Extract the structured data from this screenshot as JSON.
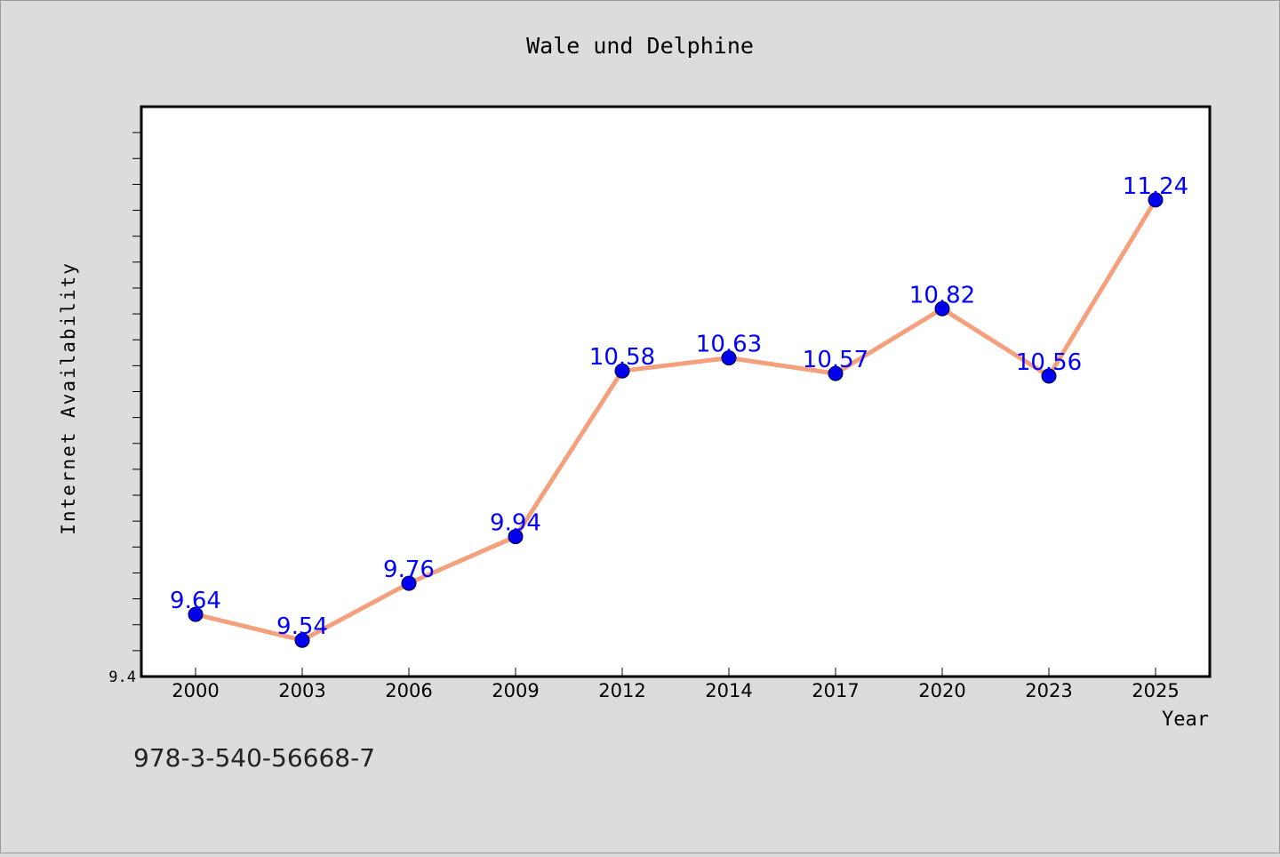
{
  "chart_data": {
    "type": "line",
    "title": "Wale und Delphine",
    "xlabel": "Year",
    "ylabel": "Internet Availability",
    "categories": [
      "2000",
      "2003",
      "2006",
      "2009",
      "2012",
      "2014",
      "2017",
      "2020",
      "2023",
      "2025"
    ],
    "series": [
      {
        "values": [
          9.64,
          9.54,
          9.76,
          9.94,
          10.58,
          10.63,
          10.57,
          10.82,
          10.56,
          11.24
        ],
        "data_labels": [
          "9.64",
          "9.54",
          "9.76",
          "9.94",
          "10.58",
          "10.63",
          "10.57",
          "10.82",
          "10.56",
          "11.24"
        ]
      }
    ],
    "ylim": [
      9.4,
      11.6
    ],
    "y_tick_labels": [
      "9.4"
    ],
    "grid": false,
    "legend": "none",
    "footer_text": "978-3-540-56668-7",
    "colors": {
      "background": "#dcdcdc",
      "plot_area": "#ffffff",
      "line": "#f5a07d",
      "marker_fill": "#0000ee",
      "data_label": "#0000ff",
      "text": "#000000",
      "footer_text": "#222222"
    }
  }
}
